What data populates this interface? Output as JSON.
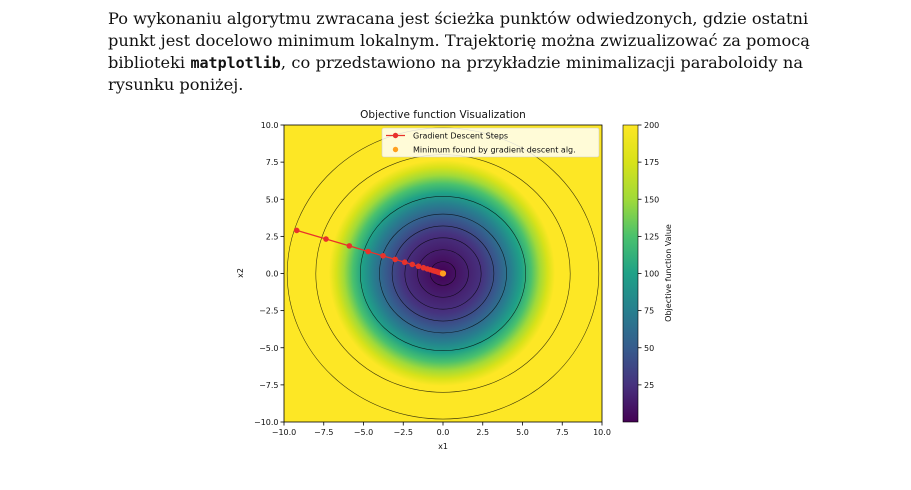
{
  "text": {
    "line1": "Po wykonaniu algorytmu zwracana jest ścieżka punktów odwiedzonych, gdzie ostatni",
    "line2": "punkt jest docelowo minimum lokalnym. Trajektorię można zwizualizować za pomocą",
    "line3_before": "biblioteki ",
    "line3_code": "matplotlib",
    "line3_after": ", co przedstawiono na przykładzie minimalizacji paraboloidy na",
    "line4": "rysunku poniżej."
  },
  "chart_data": {
    "type": "heatmap",
    "title": "Objective function Visualization",
    "xlabel": "x1",
    "ylabel": "x2",
    "xlim": [
      -10,
      10
    ],
    "ylim": [
      -10,
      10
    ],
    "x_ticks": [
      -10,
      -7.5,
      -5,
      -2.5,
      0,
      2.5,
      5,
      7.5,
      10
    ],
    "y_ticks": [
      -10,
      -7.5,
      -5,
      -2.5,
      0,
      2.5,
      5,
      7.5,
      10
    ],
    "x_tick_labels": [
      "−10.0",
      "−7.5",
      "−5.0",
      "−2.5",
      "0.0",
      "2.5",
      "5.0",
      "7.5",
      "10.0"
    ],
    "y_tick_labels": [
      "−10.0",
      "−7.5",
      "−5.0",
      "−2.5",
      "0.0",
      "2.5",
      "5.0",
      "7.5",
      "10.0"
    ],
    "colormap": "viridis",
    "colorbar": {
      "label": "Objective function Value",
      "range": [
        0,
        200
      ],
      "ticks": [
        25,
        50,
        75,
        100,
        125,
        150,
        175,
        200
      ],
      "tick_labels": [
        "25",
        "50",
        "75",
        "100",
        "125",
        "150",
        "175",
        "200"
      ]
    },
    "contour_radii": [
      0.8,
      1.6,
      2.4,
      3.2,
      4.0,
      5.2,
      8.0,
      9.8
    ],
    "legend": {
      "placement": "top-right",
      "entries": [
        "Gradient Descent Steps",
        "Minimum found by gradient descent alg."
      ]
    },
    "series": [
      {
        "name": "Gradient Descent Steps",
        "color": "#e8322b",
        "x": [
          -9.2,
          -7.36,
          -5.89,
          -4.71,
          -3.77,
          -3.01,
          -2.41,
          -1.93,
          -1.54,
          -1.23,
          -0.99,
          -0.79,
          -0.63,
          -0.51,
          -0.4,
          -0.32,
          -0.26,
          -0.21,
          -0.17,
          -0.13,
          -0.1
        ],
        "y": [
          2.9,
          2.32,
          1.86,
          1.48,
          1.19,
          0.95,
          0.76,
          0.61,
          0.49,
          0.39,
          0.31,
          0.25,
          0.2,
          0.16,
          0.13,
          0.1,
          0.08,
          0.06,
          0.05,
          0.04,
          0.03
        ]
      },
      {
        "name": "Minimum found by gradient descent alg.",
        "color": "#ffa01e",
        "x": [
          0.0
        ],
        "y": [
          0.0
        ]
      }
    ]
  }
}
